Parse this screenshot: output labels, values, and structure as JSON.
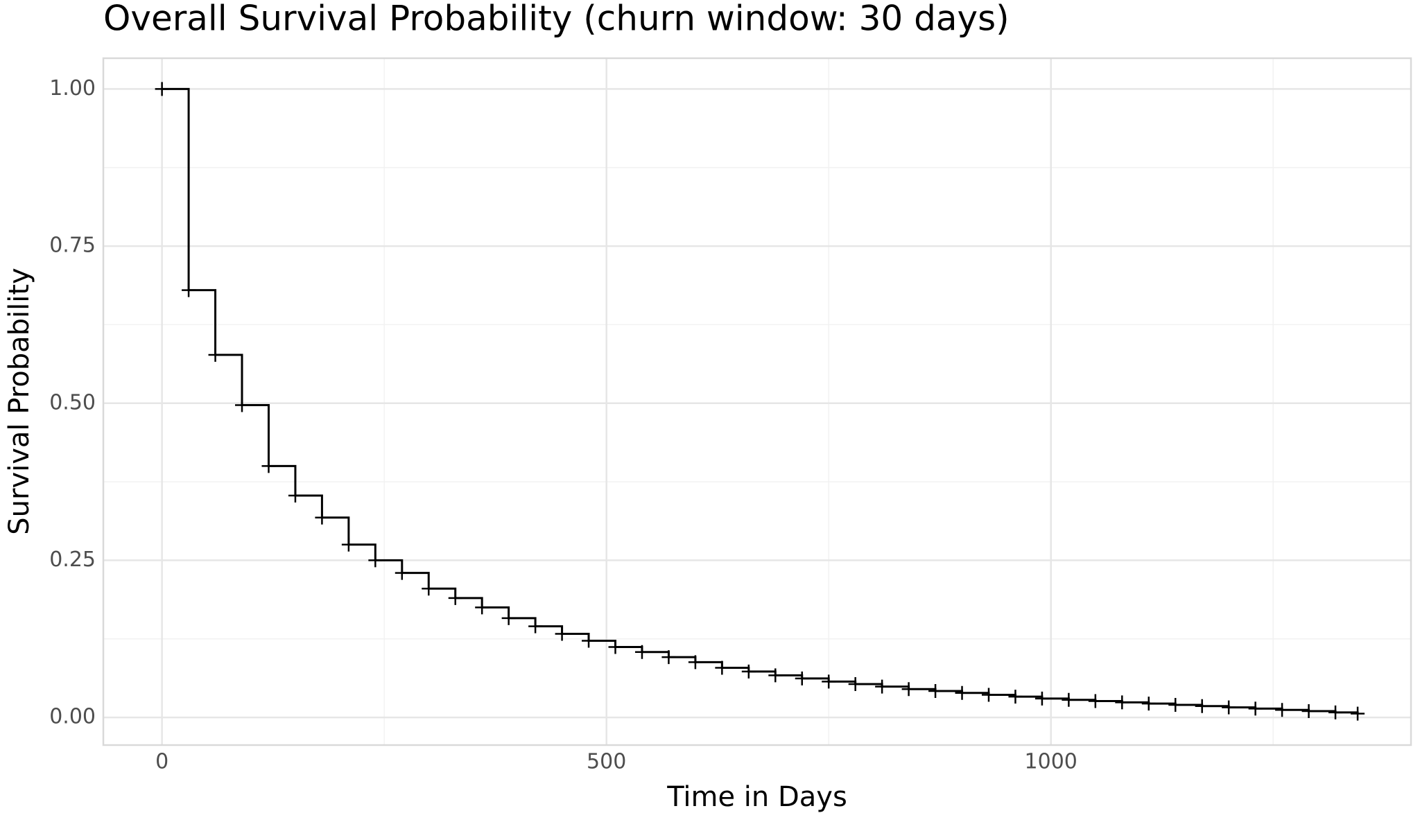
{
  "chart_data": {
    "type": "step",
    "title": "Overall Survival Probability (churn window: 30 days)",
    "x_label": "Time in Days",
    "y_label": "Survival Probability",
    "series": [
      {
        "color": "#000000",
        "x": [
          0,
          30,
          60,
          90,
          120,
          150,
          180,
          210,
          240,
          270,
          300,
          330,
          360,
          390,
          420,
          450,
          480,
          510,
          540,
          570,
          600,
          630,
          660,
          690,
          720,
          750,
          780,
          810,
          840,
          870,
          900,
          930,
          960,
          990,
          1020,
          1050,
          1080,
          1110,
          1140,
          1170,
          1200,
          1230,
          1260,
          1290,
          1320,
          1345
        ],
        "values": [
          1.0,
          0.68,
          0.577,
          0.497,
          0.4,
          0.353,
          0.318,
          0.275,
          0.25,
          0.23,
          0.205,
          0.19,
          0.175,
          0.158,
          0.145,
          0.133,
          0.122,
          0.112,
          0.104,
          0.096,
          0.088,
          0.079,
          0.073,
          0.067,
          0.062,
          0.057,
          0.053,
          0.049,
          0.045,
          0.042,
          0.039,
          0.036,
          0.033,
          0.03,
          0.028,
          0.026,
          0.024,
          0.022,
          0.02,
          0.018,
          0.016,
          0.014,
          0.012,
          0.01,
          0.008,
          0.006
        ]
      }
    ],
    "xlim": [
      -66,
      1405
    ],
    "ylim": [
      -0.044,
      1.049
    ],
    "xticks": [
      0,
      500,
      1000
    ],
    "yticks": [
      {
        "value": 0,
        "label": "0.00"
      },
      {
        "value": 0.25,
        "label": "0.25"
      },
      {
        "value": 0.5,
        "label": "0.50"
      },
      {
        "value": 0.75,
        "label": "0.75"
      },
      {
        "value": 1,
        "label": "1.00"
      }
    ],
    "grid": true
  }
}
